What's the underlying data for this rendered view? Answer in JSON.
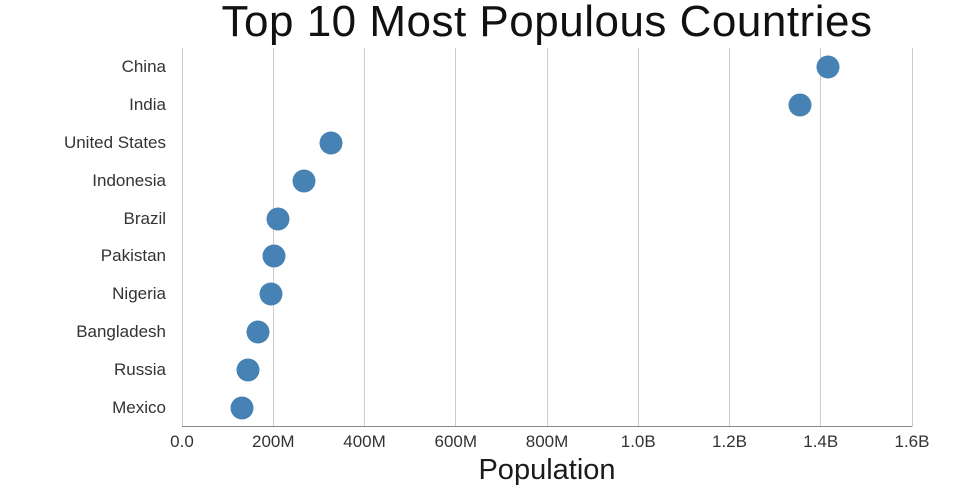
{
  "chart_data": {
    "type": "scatter",
    "title": "Top 10 Most Populous Countries",
    "xlabel": "Population",
    "ylabel": "",
    "categories": [
      "China",
      "India",
      "United States",
      "Indonesia",
      "Brazil",
      "Pakistan",
      "Nigeria",
      "Bangladesh",
      "Russia",
      "Mexico"
    ],
    "values": [
      1415000000,
      1354000000,
      327000000,
      267000000,
      211000000,
      201000000,
      196000000,
      166000000,
      144000000,
      131000000
    ],
    "xlim": [
      0,
      1600000000
    ],
    "x_ticks": [
      {
        "value": 0,
        "label": "0.0"
      },
      {
        "value": 200000000,
        "label": "200M"
      },
      {
        "value": 400000000,
        "label": "400M"
      },
      {
        "value": 600000000,
        "label": "600M"
      },
      {
        "value": 800000000,
        "label": "800M"
      },
      {
        "value": 1000000000,
        "label": "1.0B"
      },
      {
        "value": 1200000000,
        "label": "1.2B"
      },
      {
        "value": 1400000000,
        "label": "1.4B"
      },
      {
        "value": 1600000000,
        "label": "1.6B"
      }
    ],
    "grid": "vertical",
    "legend": "none",
    "colors": {
      "dot": "#4682B4",
      "grid": "#cccccc",
      "axis": "#888888",
      "text": "#333333",
      "title": "#111111"
    }
  }
}
